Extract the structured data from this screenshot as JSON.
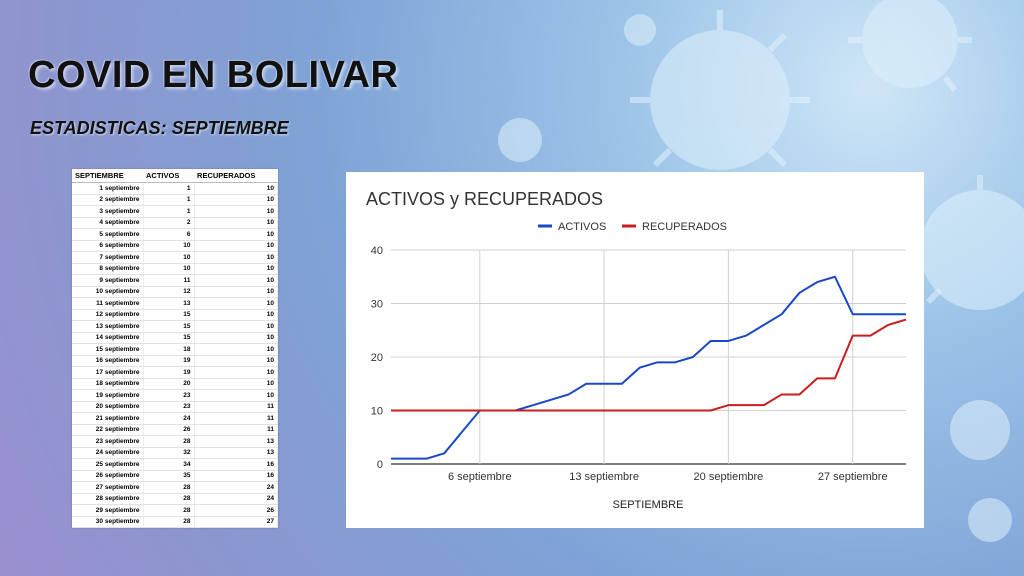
{
  "slide": {
    "title": "COVID EN BOLIVAR",
    "subtitle": "ESTADISTICAS: SEPTIEMBRE"
  },
  "table": {
    "headers": [
      "SEPTIEMBRE",
      "ACTIVOS",
      "RECUPERADOS"
    ],
    "rows": [
      [
        "1 septiembre",
        "1",
        "10"
      ],
      [
        "2 septiembre",
        "1",
        "10"
      ],
      [
        "3 septiembre",
        "1",
        "10"
      ],
      [
        "4 septiembre",
        "2",
        "10"
      ],
      [
        "5 septiembre",
        "6",
        "10"
      ],
      [
        "6 septiembre",
        "10",
        "10"
      ],
      [
        "7 septiembre",
        "10",
        "10"
      ],
      [
        "8 septiembre",
        "10",
        "10"
      ],
      [
        "9 septiembre",
        "11",
        "10"
      ],
      [
        "10 septiembre",
        "12",
        "10"
      ],
      [
        "11 septiembre",
        "13",
        "10"
      ],
      [
        "12 septiembre",
        "15",
        "10"
      ],
      [
        "13 septiembre",
        "15",
        "10"
      ],
      [
        "14 septiembre",
        "15",
        "10"
      ],
      [
        "15 septiembre",
        "18",
        "10"
      ],
      [
        "16 septiembre",
        "19",
        "10"
      ],
      [
        "17 septiembre",
        "19",
        "10"
      ],
      [
        "18 septiembre",
        "20",
        "10"
      ],
      [
        "19 septiembre",
        "23",
        "10"
      ],
      [
        "20 septiembre",
        "23",
        "11"
      ],
      [
        "21 septiembre",
        "24",
        "11"
      ],
      [
        "22 septiembre",
        "26",
        "11"
      ],
      [
        "23 septiembre",
        "28",
        "13"
      ],
      [
        "24 septiembre",
        "32",
        "13"
      ],
      [
        "25 septiembre",
        "34",
        "16"
      ],
      [
        "26 septiembre",
        "35",
        "16"
      ],
      [
        "27 septiembre",
        "28",
        "24"
      ],
      [
        "28 septiembre",
        "28",
        "24"
      ],
      [
        "29 septiembre",
        "28",
        "26"
      ],
      [
        "30 septiembre",
        "28",
        "27"
      ]
    ]
  },
  "chart_data": {
    "type": "line",
    "title": "ACTIVOS y RECUPERADOS",
    "xlabel": "SEPTIEMBRE",
    "ylabel": "",
    "x": [
      1,
      2,
      3,
      4,
      5,
      6,
      7,
      8,
      9,
      10,
      11,
      12,
      13,
      14,
      15,
      16,
      17,
      18,
      19,
      20,
      21,
      22,
      23,
      24,
      25,
      26,
      27,
      28,
      29,
      30
    ],
    "x_ticks": [
      {
        "x": 6,
        "label": "6 septiembre"
      },
      {
        "x": 13,
        "label": "13 septiembre"
      },
      {
        "x": 20,
        "label": "20 septiembre"
      },
      {
        "x": 27,
        "label": "27 septiembre"
      }
    ],
    "xlim": [
      1,
      30
    ],
    "ylim": [
      0,
      40
    ],
    "y_ticks": [
      0,
      10,
      20,
      30,
      40
    ],
    "grid": true,
    "legend_position": "top-center",
    "series": [
      {
        "name": "ACTIVOS",
        "color": "#1a49c8",
        "values": [
          1,
          1,
          1,
          2,
          6,
          10,
          10,
          10,
          11,
          12,
          13,
          15,
          15,
          15,
          18,
          19,
          19,
          20,
          23,
          23,
          24,
          26,
          28,
          32,
          34,
          35,
          28,
          28,
          28,
          28
        ]
      },
      {
        "name": "RECUPERADOS",
        "color": "#c81e1e",
        "values": [
          10,
          10,
          10,
          10,
          10,
          10,
          10,
          10,
          10,
          10,
          10,
          10,
          10,
          10,
          10,
          10,
          10,
          10,
          10,
          11,
          11,
          11,
          13,
          13,
          16,
          16,
          24,
          24,
          26,
          27
        ]
      }
    ]
  }
}
